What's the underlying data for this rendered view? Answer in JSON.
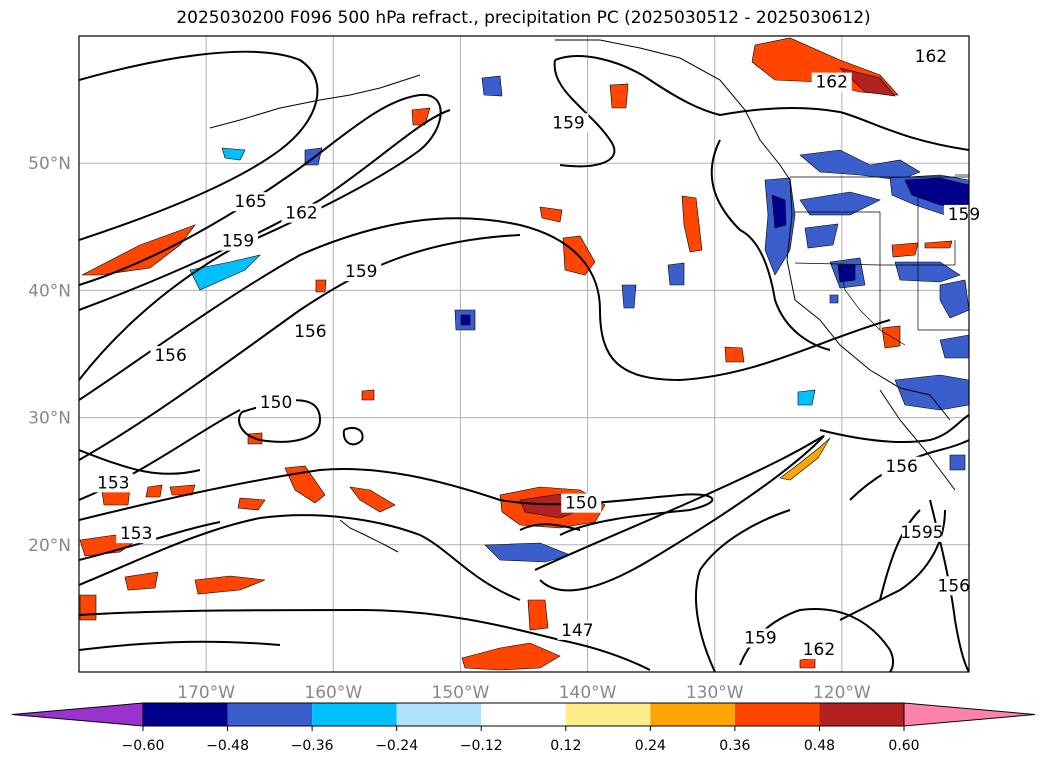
{
  "chart_data": {
    "type": "contour",
    "title": "2025030200 F096 500 hPa refract., precipitation PC (2025030512 - 2025030612)",
    "lon_range": [
      -180,
      -110
    ],
    "lat_range": [
      10,
      60
    ],
    "x_ticks": [
      "170°W",
      "160°W",
      "150°W",
      "140°W",
      "130°W",
      "120°W"
    ],
    "y_ticks": [
      "50°N",
      "40°N",
      "30°N",
      "20°N"
    ],
    "grid": true,
    "colorbar": {
      "orientation": "horizontal",
      "extend": "both",
      "levels": [
        -0.6,
        -0.48,
        -0.36,
        -0.24,
        -0.12,
        0.12,
        0.24,
        0.36,
        0.48,
        0.6
      ],
      "tick_labels": [
        "−0.60",
        "−0.48",
        "−0.36",
        "−0.24",
        "−0.12",
        "0.12",
        "0.24",
        "0.36",
        "0.48",
        "0.60"
      ],
      "colors": [
        "#9a32cd",
        "#00008b",
        "#3a5fcd",
        "#00bfff",
        "#b0e2ff",
        "#ffffff",
        "#ffec8b",
        "#ffa500",
        "#ff4500",
        "#b22222",
        "#ff82ab"
      ]
    },
    "contour_labels": [
      {
        "value": "165",
        "lon": -166.5,
        "lat": 46.7
      },
      {
        "value": "162",
        "lon": -162.5,
        "lat": 45.8
      },
      {
        "value": "159",
        "lon": -167.5,
        "lat": 43.6
      },
      {
        "value": "159",
        "lon": -157.8,
        "lat": 41.2
      },
      {
        "value": "159",
        "lon": -141.5,
        "lat": 52.9
      },
      {
        "value": "162",
        "lon": -120.8,
        "lat": 56.1
      },
      {
        "value": "162",
        "lon": -113.0,
        "lat": 58.1
      },
      {
        "value": "159",
        "lon": -110.4,
        "lat": 45.7
      },
      {
        "value": "156",
        "lon": -172.8,
        "lat": 34.6
      },
      {
        "value": "156",
        "lon": -161.8,
        "lat": 36.5
      },
      {
        "value": "150",
        "lon": -164.5,
        "lat": 30.9
      },
      {
        "value": "153",
        "lon": -177.3,
        "lat": 24.6
      },
      {
        "value": "153",
        "lon": -175.5,
        "lat": 20.6
      },
      {
        "value": "150",
        "lon": -140.5,
        "lat": 23.0
      },
      {
        "value": "147",
        "lon": -140.8,
        "lat": 13.0
      },
      {
        "value": "159",
        "lon": -126.4,
        "lat": 12.4
      },
      {
        "value": "162",
        "lon": -121.8,
        "lat": 11.5
      },
      {
        "value": "156",
        "lon": -115.3,
        "lat": 25.9
      },
      {
        "value": "1595",
        "lon": -113.7,
        "lat": 20.7
      },
      {
        "value": "156",
        "lon": -111.2,
        "lat": 16.5
      }
    ],
    "precip_areas": [
      {
        "sign": "positive",
        "level": 0.48,
        "lon": -121.0,
        "lat": 57.4
      },
      {
        "sign": "positive",
        "level": 0.36,
        "lon": -171.2,
        "lat": 42.2
      },
      {
        "sign": "positive",
        "level": 0.36,
        "lon": -143.3,
        "lat": 23.2
      },
      {
        "sign": "positive",
        "level": 0.36,
        "lon": -142.3,
        "lat": 11.2
      },
      {
        "sign": "positive",
        "level": 0.36,
        "lon": -138.7,
        "lat": 56.1
      },
      {
        "sign": "positive",
        "level": 0.36,
        "lon": -132.6,
        "lat": 45.4
      },
      {
        "sign": "positive",
        "level": 0.36,
        "lon": -140.6,
        "lat": 42.5
      },
      {
        "sign": "negative",
        "level": -0.48,
        "lon": -118.5,
        "lat": 47.8
      },
      {
        "sign": "negative",
        "level": -0.48,
        "lon": -149.0,
        "lat": 37.7
      },
      {
        "sign": "negative",
        "level": -0.36,
        "lon": -142.0,
        "lat": 19.7
      },
      {
        "sign": "negative",
        "level": -0.36,
        "lon": -116.0,
        "lat": 31.9
      }
    ]
  }
}
